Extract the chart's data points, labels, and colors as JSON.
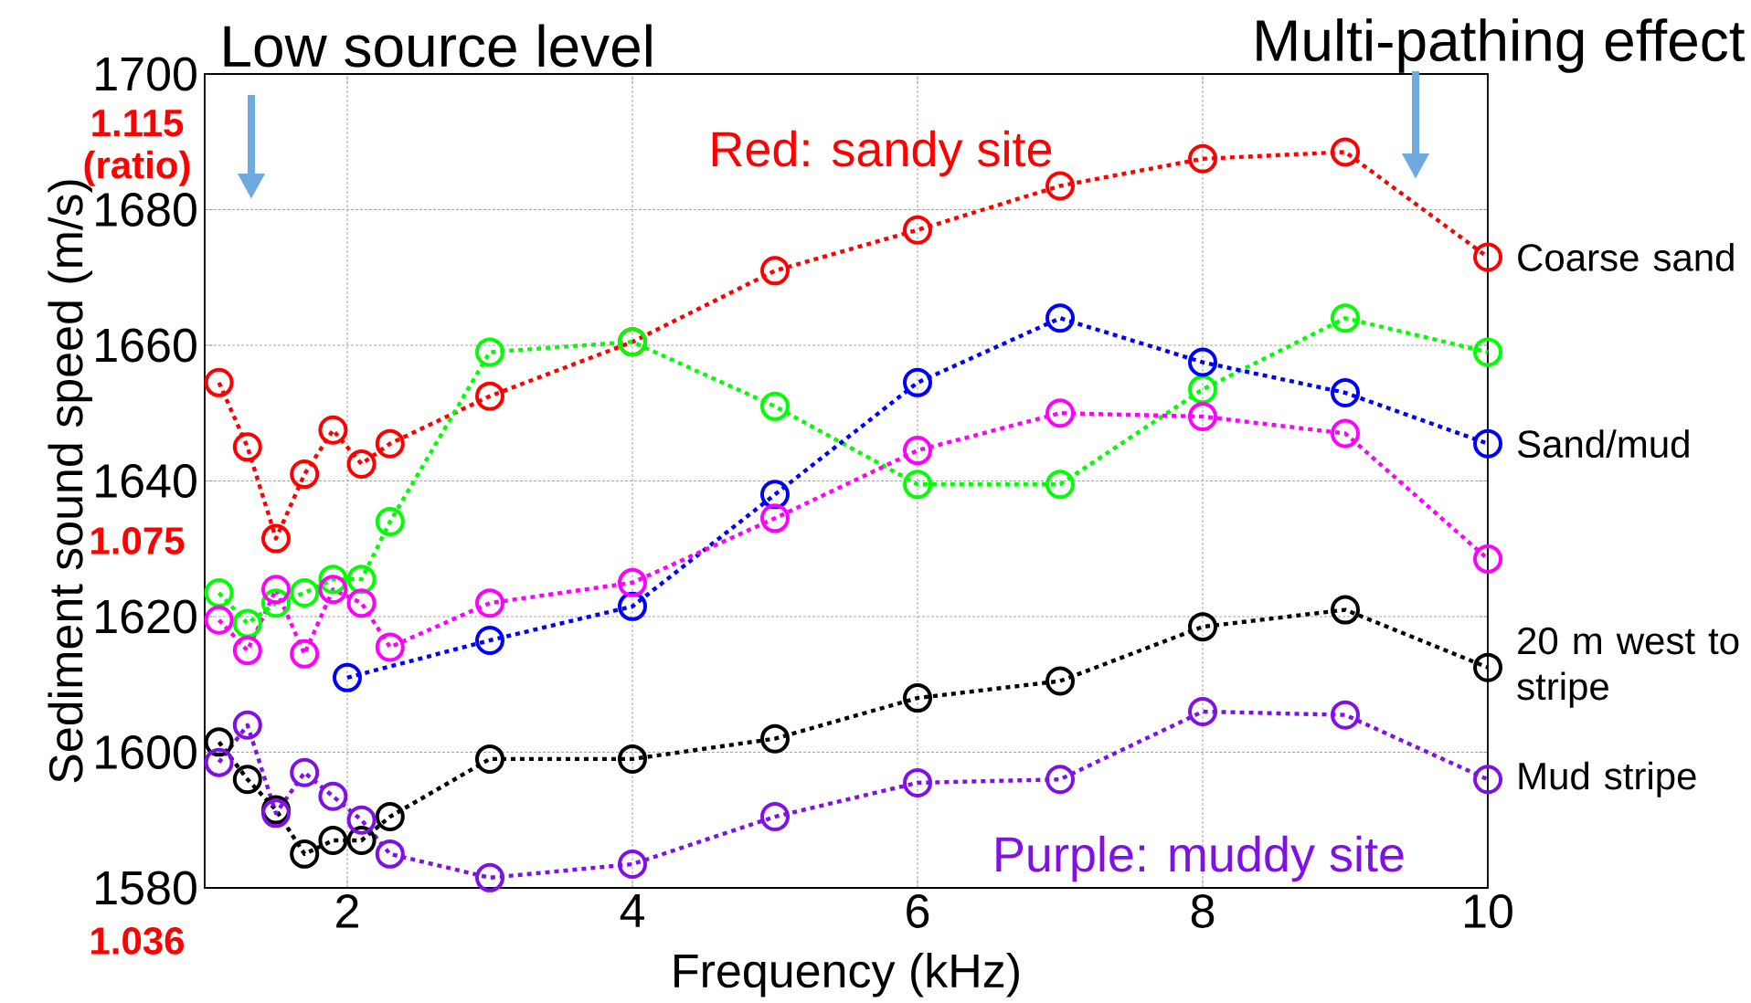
{
  "chart_data": {
    "type": "line",
    "xlabel": "Frequency (kHz)",
    "ylabel": "Sediment sound speed (m/s)",
    "x": [
      1.1,
      1.3,
      1.5,
      1.7,
      1.9,
      2.1,
      2.3,
      3,
      4,
      5,
      6,
      7,
      8,
      9,
      10
    ],
    "series": [
      {
        "name": "Coarse sand",
        "color": "#ff0000",
        "values": [
          1654.5,
          1645,
          1631.5,
          1641,
          1647.5,
          1642.5,
          1645.5,
          1652.5,
          1660.5,
          1671,
          1677,
          1683.5,
          1687.5,
          1688.5,
          1673
        ]
      },
      {
        "color": "#00ff00",
        "values": [
          1623.5,
          1619,
          1622,
          1623.5,
          1625.5,
          1625.5,
          1634,
          1659,
          1660.5,
          1651,
          1639.5,
          1639.5,
          1653.5,
          1664,
          1659
        ]
      },
      {
        "name": "Sand/mud",
        "color": "#0000ff",
        "x": [
          2,
          3,
          4,
          5,
          6,
          7,
          8,
          9,
          10
        ],
        "values": [
          1611,
          1616.5,
          1621.5,
          1638,
          1654.5,
          1664,
          1657.5,
          1653,
          1645.5
        ]
      },
      {
        "color": "#ff00ff",
        "values": [
          1619.5,
          1615,
          1624,
          1614.5,
          1624,
          1622,
          1615.5,
          1622,
          1625,
          1634.5,
          1644.5,
          1650,
          1649.5,
          1647,
          1628.5
        ]
      },
      {
        "name": "20 m west to stripe",
        "color": "#000000",
        "values": [
          1601.5,
          1596,
          1591.5,
          1585,
          1587,
          1587,
          1590.5,
          1599,
          1599,
          1602,
          1608,
          1610.5,
          1618.5,
          1621,
          1612.5
        ]
      },
      {
        "name": "Mud stripe",
        "color": "#8010e8",
        "values": [
          1598.5,
          1604,
          1591,
          1597,
          1593.5,
          1590,
          1585,
          1581.5,
          1583.5,
          1590.5,
          1595.5,
          1596,
          1606,
          1605.5,
          1596
        ]
      }
    ],
    "xlim": [
      1,
      10
    ],
    "ylim": [
      1580,
      1700
    ],
    "xticks": [
      2,
      4,
      6,
      8,
      10
    ],
    "yticks": [
      1580,
      1600,
      1620,
      1640,
      1660,
      1680,
      1700
    ],
    "grid": true,
    "marker": "circle",
    "line_style": "dotted",
    "legend": "right",
    "annotations": [
      "Low source level",
      "Multi-pathing effect",
      "Red: sandy site",
      "Purple: muddy site",
      "1.115 (ratio)",
      "1.075",
      "1.036"
    ]
  }
}
